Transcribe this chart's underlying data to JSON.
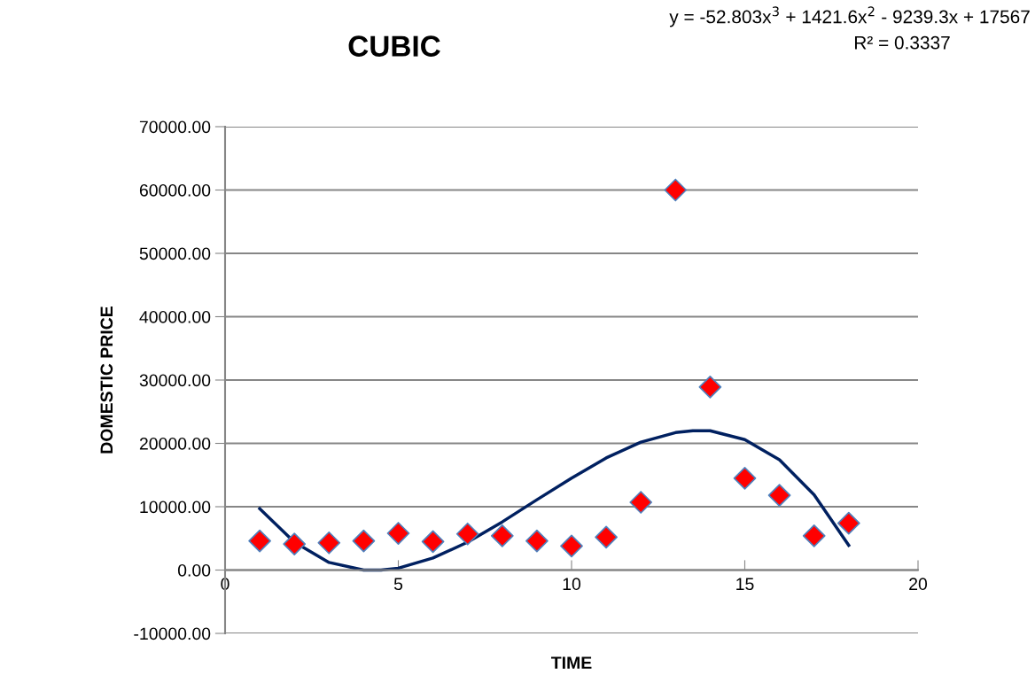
{
  "chart_data": {
    "type": "scatter",
    "title": "CUBIC",
    "xlabel": "TIME",
    "ylabel": "DOMESTIC PRICE",
    "annotations": [
      "y = -52.803x$^{3}$ + 1421.6x$^{2}$ - 9239.3x + 17567",
      "R² = 0.3337"
    ],
    "x": [
      1,
      2,
      3,
      4,
      5,
      6,
      7,
      8,
      9,
      10,
      11,
      12,
      13,
      14,
      15,
      16,
      17,
      18
    ],
    "series": [
      {
        "color": "#ff0000",
        "marker": "diamond",
        "values": [
          4600,
          4100,
          4300,
          4600,
          5800,
          4500,
          5700,
          5400,
          4600,
          3800,
          5200,
          10700,
          60000,
          28900,
          14500,
          11800,
          5400,
          7400
        ]
      },
      {
        "type": "line",
        "color": "#002060",
        "x": [
          1,
          2,
          3,
          4,
          4.5,
          5,
          6,
          7,
          8,
          9,
          10,
          11,
          12,
          13,
          13.5,
          14,
          15,
          16,
          17,
          18
        ],
        "values": [
          9700,
          4400,
          1200,
          0,
          0,
          300,
          1900,
          4400,
          7600,
          11100,
          14500,
          17700,
          20200,
          21700,
          22000,
          22000,
          20600,
          17400,
          11900,
          3900
        ]
      }
    ],
    "xlim": [
      0,
      20
    ],
    "xticks": [
      0,
      5,
      10,
      15,
      20
    ],
    "ylim": [
      -10000,
      70000
    ],
    "yticks": [
      {
        "value": -10000,
        "label": "-10000.00"
      },
      {
        "value": 0,
        "label": "0.00"
      },
      {
        "value": 10000,
        "label": "10000.00"
      },
      {
        "value": 20000,
        "label": "20000.00"
      },
      {
        "value": 30000,
        "label": "30000.00"
      },
      {
        "value": 40000,
        "label": "40000.00"
      },
      {
        "value": 50000,
        "label": "50000.00"
      },
      {
        "value": 60000,
        "label": "60000.00"
      },
      {
        "value": 70000,
        "label": "70000.00"
      }
    ],
    "grid": "y"
  }
}
